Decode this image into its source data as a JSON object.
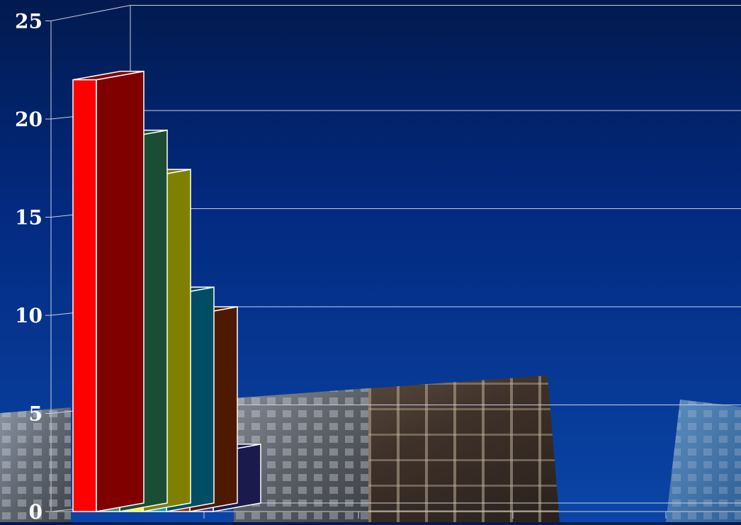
{
  "chart_data": {
    "type": "bar",
    "title": "",
    "xlabel": "",
    "ylabel": "",
    "ylim": [
      0,
      25
    ],
    "y_ticks": [
      "0",
      "5",
      "10",
      "15",
      "20",
      "25"
    ],
    "categories": [
      "",
      "",
      "",
      "",
      "",
      ""
    ],
    "values": [
      22,
      19,
      17,
      11,
      10,
      3
    ],
    "colors": [
      "#ff0000",
      "#339966",
      "#ffff00",
      "#0099cc",
      "#993300",
      "#333399"
    ],
    "side_colors": [
      "#800000",
      "#1a4d33",
      "#808000",
      "#004d66",
      "#4d1a00",
      "#1a1a4d"
    ],
    "grid": true,
    "legend": "none",
    "style": "3d",
    "background_colors": {
      "top": "#021a4f",
      "bottom": "#0a45a6",
      "grid": "#c8d0e0",
      "tick_label": "#ffffff"
    }
  }
}
